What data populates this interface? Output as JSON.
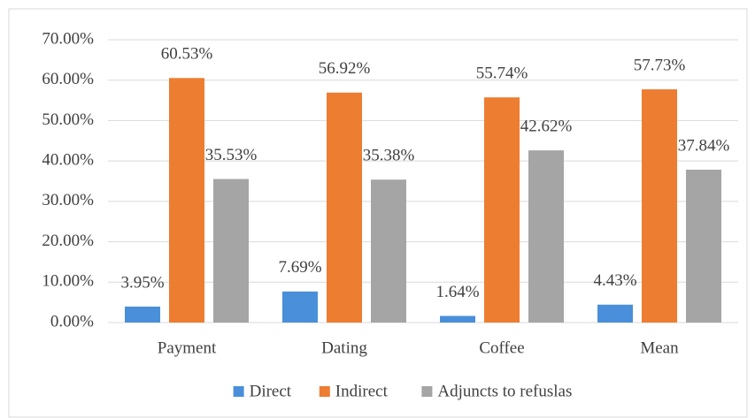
{
  "chart_data": {
    "type": "bar",
    "categories": [
      "Payment",
      "Dating",
      "Coffee",
      "Mean"
    ],
    "series": [
      {
        "name": "Direct",
        "color": "#4a8fd9",
        "values": [
          3.95,
          7.69,
          1.64,
          4.43
        ],
        "value_labels": [
          "3.95%",
          "7.69%",
          "1.64%",
          "4.43%"
        ]
      },
      {
        "name": "Indirect",
        "color": "#ed7d31",
        "values": [
          60.53,
          56.92,
          55.74,
          57.73
        ],
        "value_labels": [
          "60.53%",
          "56.92%",
          "55.74%",
          "57.73%"
        ]
      },
      {
        "name": "Adjuncts to refuslas",
        "color": "#a5a5a5",
        "values": [
          35.53,
          35.38,
          42.62,
          37.84
        ],
        "value_labels": [
          "35.53%",
          "35.38%",
          "42.62%",
          "37.84%"
        ]
      }
    ],
    "ylim": [
      0,
      70
    ],
    "yticks": [
      {
        "value": 0,
        "label": "0.00%"
      },
      {
        "value": 10,
        "label": "10.00%"
      },
      {
        "value": 20,
        "label": "20.00%"
      },
      {
        "value": 30,
        "label": "30.00%"
      },
      {
        "value": 40,
        "label": "40.00%"
      },
      {
        "value": 50,
        "label": "50.00%"
      },
      {
        "value": 60,
        "label": "60.00%"
      },
      {
        "value": 70,
        "label": "70.00%"
      }
    ],
    "grid": true,
    "legend": "bottom"
  }
}
